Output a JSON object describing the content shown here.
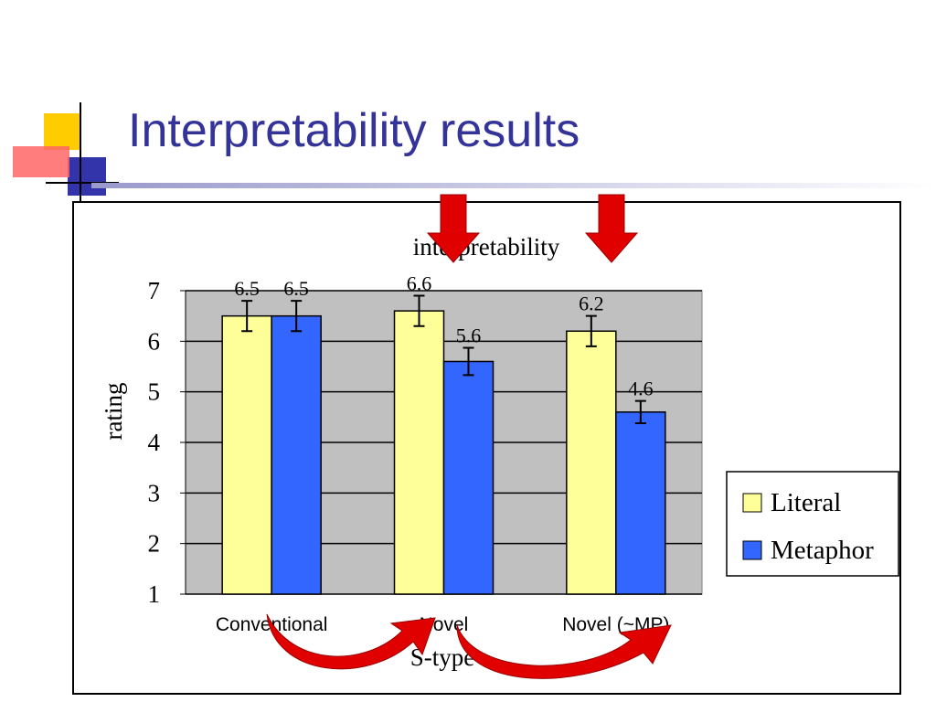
{
  "title": "Interpretability results",
  "chart_data": {
    "type": "bar",
    "title": "interpretability",
    "x_label": "S-type",
    "y_label": "rating",
    "categories": [
      "Conventional",
      "Novel",
      "Novel (~MP)"
    ],
    "series": [
      {
        "name": "Literal",
        "color": "#ffff99",
        "values": [
          6.5,
          6.6,
          6.2
        ],
        "errors": [
          0.3,
          0.3,
          0.3
        ]
      },
      {
        "name": "Metaphor",
        "color": "#3366ff",
        "values": [
          6.5,
          5.6,
          4.6
        ],
        "errors": [
          0.3,
          0.27,
          0.22
        ]
      }
    ],
    "ylim": [
      1,
      7
    ],
    "yticks": [
      1,
      2,
      3,
      4,
      5,
      6,
      7
    ],
    "grid": true,
    "legend": "right"
  }
}
